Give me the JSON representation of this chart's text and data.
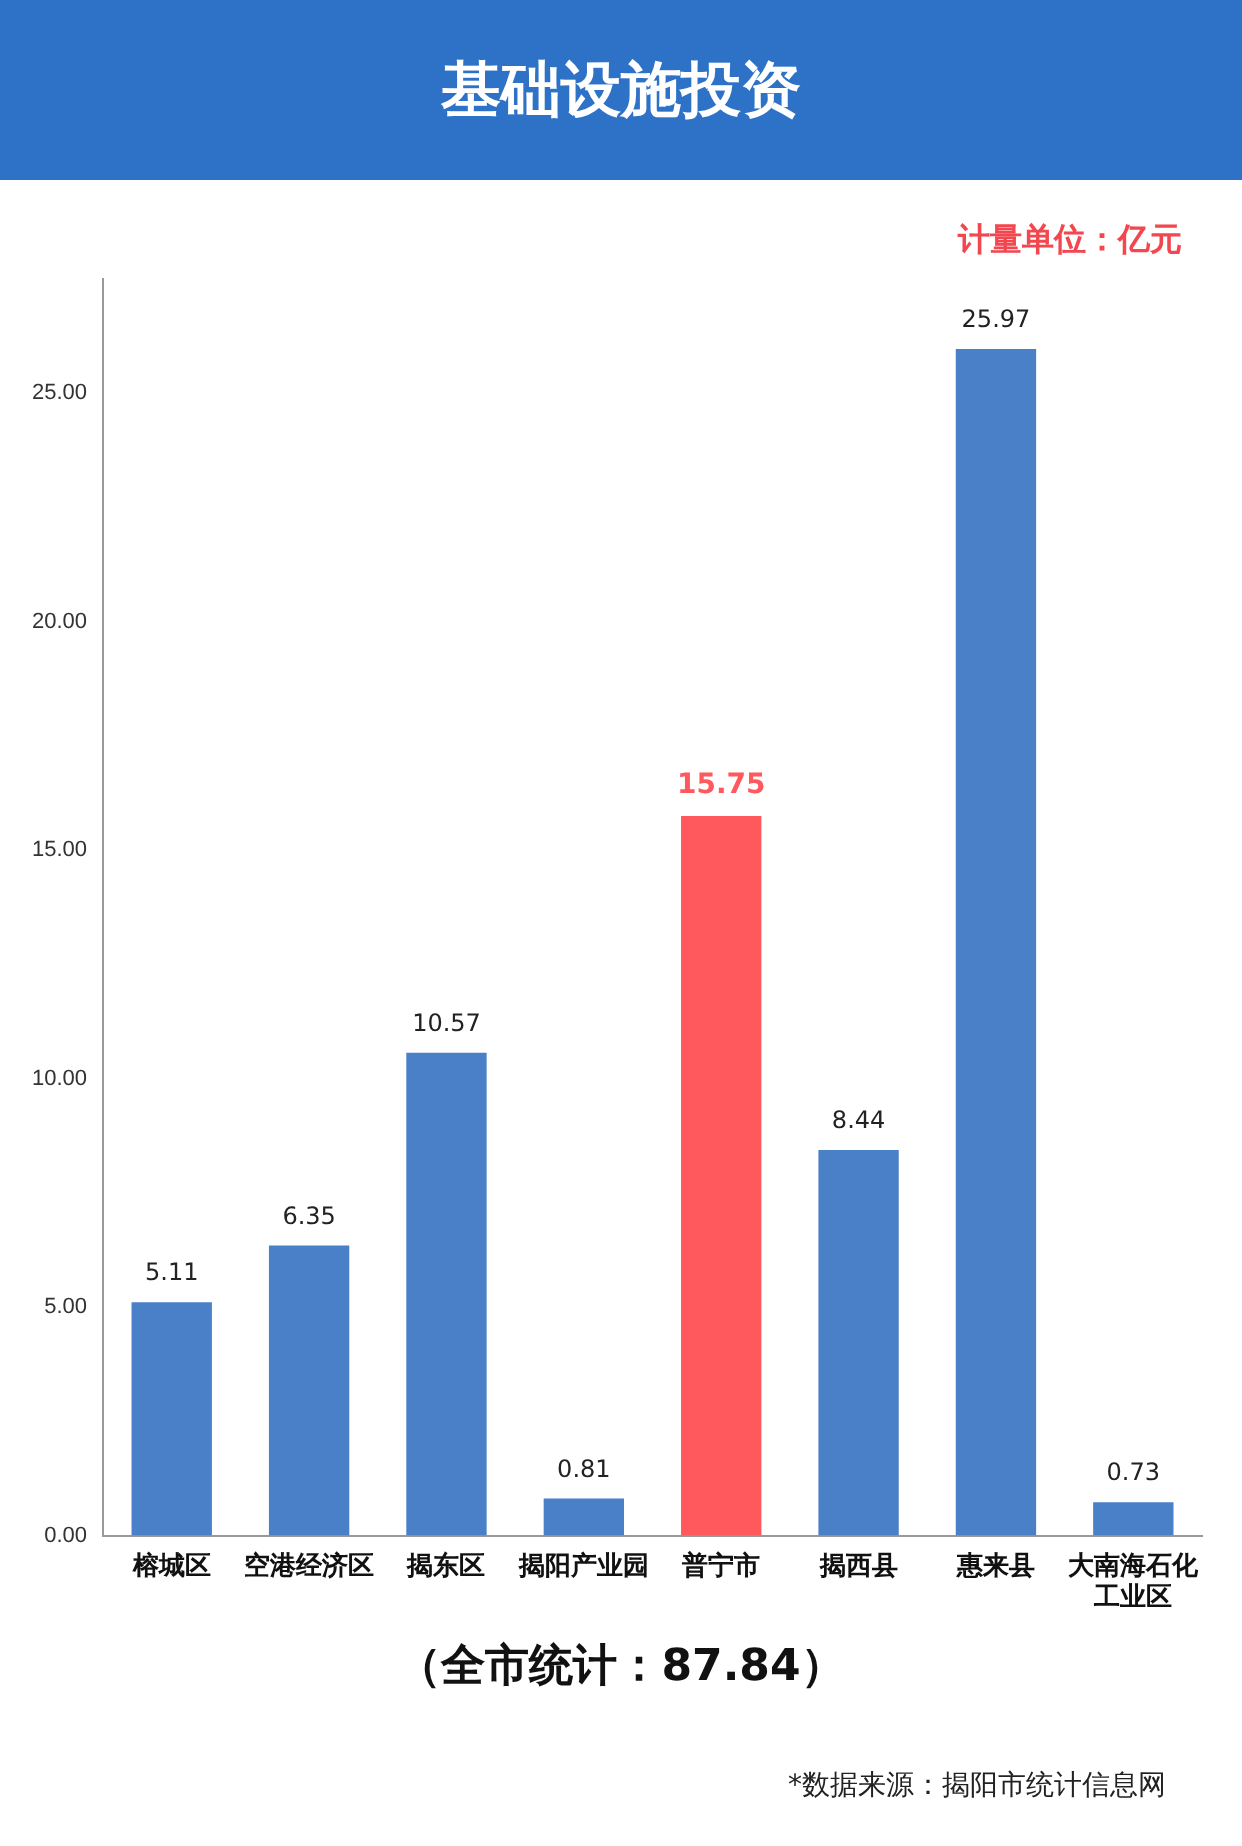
{
  "chart_data": {
    "type": "bar",
    "title": "基础设施投资",
    "categories": [
      "榕城区",
      "空港经济区",
      "揭东区",
      "揭阳产业园",
      "普宁市",
      "揭西县",
      "惠来县",
      "大南海石化工业区"
    ],
    "values": [
      5.11,
      6.35,
      10.57,
      0.81,
      15.75,
      8.44,
      25.97,
      0.73
    ],
    "colors": [
      "#4a80c8",
      "#4a80c8",
      "#4a80c8",
      "#4a80c8",
      "#ff585d",
      "#4a80c8",
      "#4a80c8",
      "#4a80c8"
    ],
    "ylim": [
      0,
      27.5
    ],
    "yticks": [
      {
        "value": 0,
        "label": "0.00"
      },
      {
        "value": 5,
        "label": "5.00"
      },
      {
        "value": 10,
        "label": "10.00"
      },
      {
        "value": 15,
        "label": "15.00"
      },
      {
        "value": 20,
        "label": "20.00"
      },
      {
        "value": 25,
        "label": "25.00"
      }
    ],
    "grid": false,
    "legend": false,
    "data_labels": true,
    "annotations": [
      "计量单位：亿元",
      "（全市统计：87.84）",
      "*数据来源：揭阳市统计信息网"
    ]
  }
}
